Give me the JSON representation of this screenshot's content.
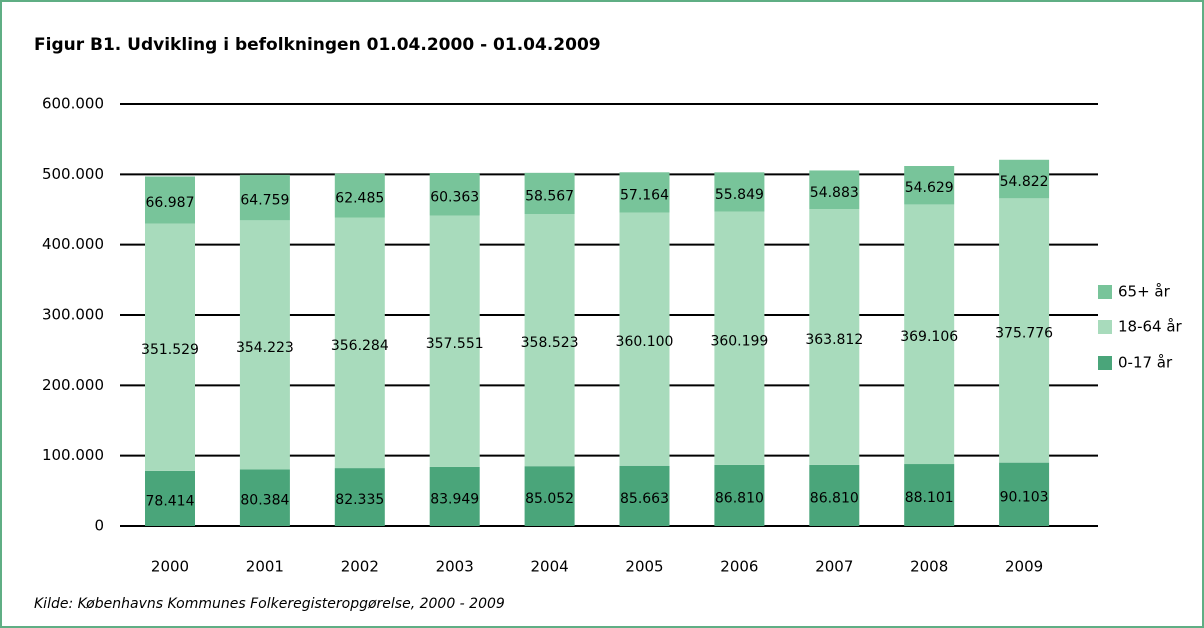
{
  "chart_data": {
    "type": "stacked_bar",
    "title": "Figur B1. Udvikling i befolkningen 01.04.2000 - 01.04.2009",
    "source": "Kilde: Københavns Kommunes Folkeregisteropgørelse, 2000 - 2009",
    "categories": [
      "2000",
      "2001",
      "2002",
      "2003",
      "2004",
      "2005",
      "2006",
      "2007",
      "2008",
      "2009"
    ],
    "series": [
      {
        "name": "0-17 år",
        "color": "#4aa57a",
        "values": [
          78414,
          80384,
          82335,
          83949,
          85052,
          85663,
          86810,
          86810,
          88101,
          90103
        ],
        "value_labels": [
          "78.414",
          "80.384",
          "82.335",
          "83.949",
          "85.052",
          "85.663",
          "86.810",
          "86.810",
          "88.101",
          "90.103"
        ]
      },
      {
        "name": "18-64 år",
        "color": "#a8dbbc",
        "values": [
          351529,
          354223,
          356284,
          357551,
          358523,
          360100,
          360199,
          363812,
          369106,
          375776
        ],
        "value_labels": [
          "351.529",
          "354.223",
          "356.284",
          "357.551",
          "358.523",
          "360.100",
          "360.199",
          "363.812",
          "369.106",
          "375.776"
        ]
      },
      {
        "name": "65+ år",
        "color": "#78c49a",
        "values": [
          66987,
          64759,
          62485,
          60363,
          58567,
          57164,
          55849,
          54883,
          54629,
          54822
        ],
        "value_labels": [
          "66.987",
          "64.759",
          "62.485",
          "60.363",
          "58.567",
          "57.164",
          "55.849",
          "54.883",
          "54.629",
          "54.822"
        ]
      }
    ],
    "ylim": [
      0,
      600000
    ],
    "yticks": [
      0,
      {
        "value": 100000,
        "label": "100.000"
      },
      {
        "value": 200000,
        "label": "200.000"
      },
      {
        "value": 300000,
        "label": "300.000"
      },
      {
        "value": 400000,
        "label": "400.000"
      },
      {
        "value": 500000,
        "label": "500.000"
      },
      {
        "value": 600000,
        "label": "600.000"
      }
    ],
    "grid": true,
    "legend": "right"
  }
}
